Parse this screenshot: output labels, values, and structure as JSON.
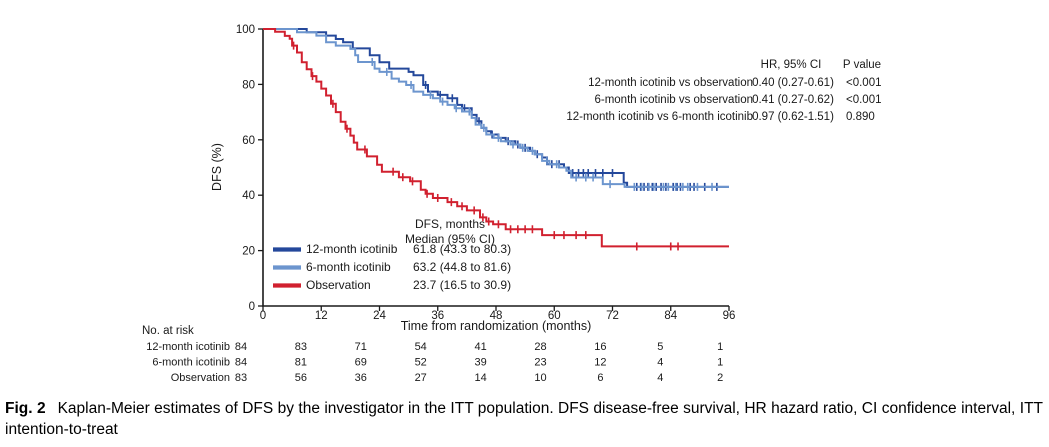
{
  "figure": {
    "caption_label": "Fig. 2",
    "caption_text": "Kaplan-Meier estimates of DFS by the investigator in the ITT population. DFS disease-free survival, HR hazard ratio, CI confidence interval, ITT intention-to-treat"
  },
  "chart_data": {
    "type": "line",
    "subtype": "kaplan-meier-step",
    "title": "",
    "xlabel": "Time from randomization (months)",
    "ylabel": "DFS (%)",
    "xlim": [
      0,
      96
    ],
    "ylim": [
      0,
      100
    ],
    "xticks": [
      0,
      12,
      24,
      36,
      48,
      60,
      72,
      84,
      96
    ],
    "yticks": [
      0,
      20,
      40,
      60,
      80,
      100
    ],
    "grid": false,
    "axis_color": "#1a1a1a",
    "series": [
      {
        "name": "12-month icotinib",
        "color": "#24489B",
        "points": [
          [
            0,
            100
          ],
          [
            9,
            98.8
          ],
          [
            13,
            97.6
          ],
          [
            15,
            96.4
          ],
          [
            16.5,
            95.2
          ],
          [
            18.5,
            93
          ],
          [
            22,
            90.5
          ],
          [
            24,
            88
          ],
          [
            26,
            85.7
          ],
          [
            30,
            84.5
          ],
          [
            31,
            83.3
          ],
          [
            33,
            79.8
          ],
          [
            34,
            77.4
          ],
          [
            36,
            76.2
          ],
          [
            38,
            75
          ],
          [
            40,
            72.6
          ],
          [
            41,
            71.4
          ],
          [
            43,
            69
          ],
          [
            44,
            66.7
          ],
          [
            45,
            64.3
          ],
          [
            46,
            63.1
          ],
          [
            47,
            61.9
          ],
          [
            48.5,
            60.7
          ],
          [
            50,
            59.5
          ],
          [
            52,
            58.3
          ],
          [
            53,
            57.1
          ],
          [
            55,
            56
          ],
          [
            56,
            54.8
          ],
          [
            57.5,
            53.6
          ],
          [
            58.5,
            51.2
          ],
          [
            62,
            50
          ],
          [
            63,
            48
          ],
          [
            74.3,
            44.5
          ],
          [
            75,
            43
          ],
          [
            96,
            43
          ]
        ],
        "censor_months": [
          33.5,
          36.5,
          39,
          41.5,
          44.5,
          47.2,
          50.5,
          52.5,
          54,
          56.5,
          59.5,
          61,
          63.8,
          65,
          66,
          67,
          68.5,
          70,
          72,
          77,
          77.8,
          78.5,
          79.3,
          80.2,
          81,
          82,
          83,
          84.5,
          85.3,
          86,
          88,
          88.8,
          91,
          93.5
        ]
      },
      {
        "name": "6-month icotinib",
        "color": "#6C95CE",
        "points": [
          [
            0,
            100
          ],
          [
            7,
            98.8
          ],
          [
            11,
            97.6
          ],
          [
            13,
            95.2
          ],
          [
            15,
            94
          ],
          [
            18,
            92.8
          ],
          [
            19,
            90.5
          ],
          [
            19.6,
            88.1
          ],
          [
            23,
            85.7
          ],
          [
            24,
            84.5
          ],
          [
            26.5,
            82.1
          ],
          [
            28,
            81
          ],
          [
            29.5,
            79.8
          ],
          [
            31,
            77.4
          ],
          [
            33,
            76.2
          ],
          [
            35,
            75
          ],
          [
            36.5,
            73.8
          ],
          [
            38,
            72.6
          ],
          [
            39.5,
            71.4
          ],
          [
            41,
            70.2
          ],
          [
            43,
            67.9
          ],
          [
            43.8,
            65.5
          ],
          [
            45,
            64.3
          ],
          [
            46,
            61.9
          ],
          [
            47.5,
            60.7
          ],
          [
            49,
            59.5
          ],
          [
            51,
            58.3
          ],
          [
            53,
            57.1
          ],
          [
            54.5,
            56
          ],
          [
            56,
            54.8
          ],
          [
            57.5,
            52.4
          ],
          [
            59,
            51.2
          ],
          [
            61,
            50
          ],
          [
            62.5,
            48.8
          ],
          [
            63.5,
            46.4
          ],
          [
            70,
            44
          ],
          [
            74.5,
            43
          ],
          [
            96,
            43
          ]
        ],
        "censor_months": [
          22.5,
          25.5,
          30.5,
          34.5,
          37,
          39.8,
          42.5,
          45.5,
          48.5,
          51.5,
          53.5,
          55.5,
          58.5,
          60.5,
          64.5,
          66.5,
          68,
          71.5,
          76.5,
          78,
          79.5,
          80.5,
          82.5,
          83.5,
          85,
          86.5,
          87.5,
          89.5,
          92.5
        ]
      },
      {
        "name": "Observation",
        "color": "#D1202F",
        "points": [
          [
            0,
            100
          ],
          [
            2.5,
            99
          ],
          [
            4.5,
            97.5
          ],
          [
            5.5,
            96.5
          ],
          [
            6,
            94
          ],
          [
            7,
            91.5
          ],
          [
            8,
            88
          ],
          [
            9,
            85.5
          ],
          [
            10,
            83
          ],
          [
            11,
            81
          ],
          [
            12,
            78.5
          ],
          [
            13,
            76
          ],
          [
            14,
            73
          ],
          [
            15,
            70
          ],
          [
            16,
            66.5
          ],
          [
            17,
            64
          ],
          [
            18,
            61.5
          ],
          [
            18.7,
            59
          ],
          [
            19.4,
            56.5
          ],
          [
            21.4,
            54
          ],
          [
            23.5,
            51
          ],
          [
            24.5,
            48.5
          ],
          [
            28,
            46.5
          ],
          [
            30.3,
            45
          ],
          [
            32.5,
            42
          ],
          [
            33.5,
            40.5
          ],
          [
            35,
            39
          ],
          [
            38,
            37.5
          ],
          [
            40,
            36
          ],
          [
            42,
            34.5
          ],
          [
            44.7,
            32
          ],
          [
            46,
            30.5
          ],
          [
            47.4,
            29.5
          ],
          [
            50,
            27.7
          ],
          [
            57.5,
            25.6
          ],
          [
            69.8,
            21.5
          ],
          [
            96,
            21.5
          ]
        ],
        "censor_months": [
          6.3,
          10.2,
          14.4,
          17.3,
          21,
          26.8,
          28.8,
          30.8,
          33.8,
          36,
          38.8,
          41,
          43.5,
          45.3,
          46.5,
          48.5,
          51,
          52.5,
          54,
          55.5,
          60,
          62,
          64.5,
          66.5,
          77,
          84,
          85.5
        ]
      }
    ],
    "hr_table": {
      "col_hr_header": "HR, 95% CI",
      "col_p_header": "P value",
      "rows": [
        {
          "comparison": "12-month icotinib vs observation",
          "hr": "0.40 (0.27-0.61)",
          "p": "<0.001"
        },
        {
          "comparison": "6-month icotinib vs observation",
          "hr": "0.41 (0.27-0.62)",
          "p": "<0.001"
        },
        {
          "comparison": "12-month icotinib vs 6-month icotinib",
          "hr": "0.97 (0.62-1.51)",
          "p": "0.890"
        }
      ]
    },
    "median_legend": {
      "header_line1": "DFS, months",
      "header_line2": "Median (95% CI)",
      "rows": [
        {
          "name": "12-month icotinib",
          "median": "61.8 (43.3 to 80.3)"
        },
        {
          "name": "6-month icotinib",
          "median": "63.2 (44.8 to 81.6)"
        },
        {
          "name": "Observation",
          "median": "23.7 (16.5 to 30.9)"
        }
      ]
    },
    "risk_table": {
      "title": "No. at risk",
      "rows": [
        {
          "name": "12-month icotinib",
          "counts": [
            84,
            83,
            71,
            54,
            41,
            28,
            16,
            5,
            1
          ]
        },
        {
          "name": "6-month icotinib",
          "counts": [
            84,
            81,
            69,
            52,
            39,
            23,
            12,
            4,
            1
          ]
        },
        {
          "name": "Observation",
          "counts": [
            83,
            56,
            36,
            27,
            14,
            10,
            6,
            4,
            2
          ]
        }
      ]
    }
  }
}
